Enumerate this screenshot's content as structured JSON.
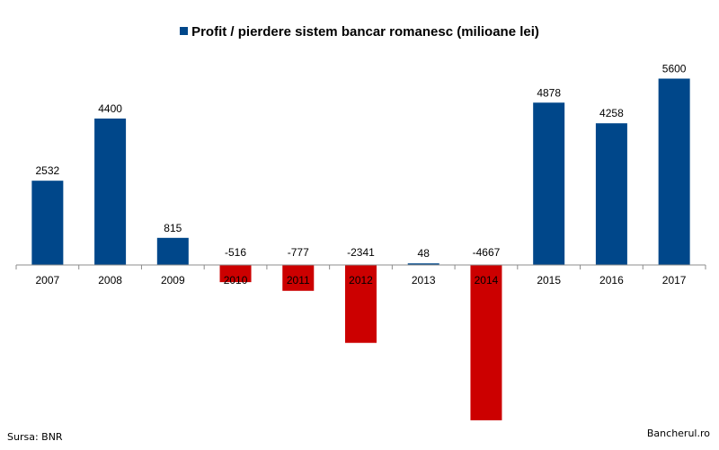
{
  "chart_data": {
    "type": "bar",
    "categories": [
      "2007",
      "2008",
      "2009",
      "2010",
      "2011",
      "2012",
      "2013",
      "2014",
      "2015",
      "2016",
      "2017"
    ],
    "series": [
      {
        "name": "Profit / pierdere sistem bancar romanesc (milioane lei)",
        "values": [
          2532,
          4400,
          815,
          -516,
          -777,
          -2341,
          48,
          -4667,
          4878,
          4258,
          5600
        ]
      }
    ],
    "title": "",
    "xlabel": "",
    "ylabel": "",
    "ylim": [
      -4700,
      5750
    ],
    "grid": false,
    "legend": "top-center",
    "colors": {
      "positive": "#00478a",
      "negative": "#cc0000"
    }
  },
  "footer": {
    "source": "Sursa: BNR",
    "brand": "Bancherul.ro"
  }
}
